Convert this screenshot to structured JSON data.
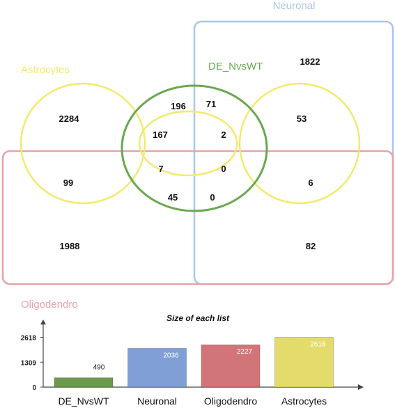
{
  "venn": {
    "sets": [
      {
        "key": "astrocytes",
        "label": "Astrocytes",
        "color": "#f2ea6e"
      },
      {
        "key": "neuronal",
        "label": "Neuronal",
        "color": "#a9c6ea"
      },
      {
        "key": "oligodendro",
        "label": "Oligodendro",
        "color": "#eba1a8"
      },
      {
        "key": "de",
        "label": "DE_NvsWT",
        "color": "#6aa84f"
      }
    ],
    "counts": {
      "n_only": "1822",
      "a_only": "2284",
      "a_de": "196",
      "n_de": "71",
      "a_n_de": "167",
      "n_a_de": "2",
      "a_n": "53",
      "a_o": "99",
      "a_o_de": "7",
      "all_four": "0",
      "n_a_o": "6",
      "o_a_de": "45",
      "o_n_de": "0",
      "o_only": "1988",
      "n_o": "82"
    }
  },
  "chart_data": {
    "type": "bar",
    "title": "Size of each list",
    "categories": [
      "DE_NvsWT",
      "Neuronal",
      "Oligodendro",
      "Astrocytes"
    ],
    "values": [
      490,
      2036,
      2227,
      2618
    ],
    "ytick_labels": [
      "0",
      "1309",
      "2618"
    ],
    "ylim": [
      0,
      3150
    ],
    "colors": [
      "#6a9a4b",
      "#7f9fd6",
      "#d27579",
      "#e4dc6a"
    ],
    "value_label_colors": [
      "#222222",
      "#ffffff",
      "#ffffff",
      "#ffffff"
    ]
  }
}
